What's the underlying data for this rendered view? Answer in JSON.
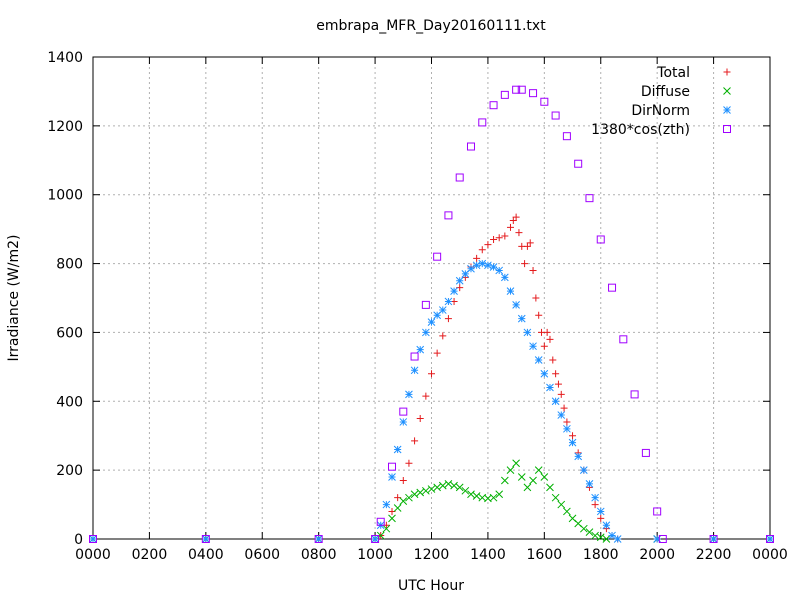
{
  "chart_data": {
    "type": "scatter",
    "title": "embrapa_MFR_Day20160111.txt",
    "xlabel": "UTC Hour",
    "ylabel": "Irradiance (W/m2)",
    "xlim": [
      0,
      24
    ],
    "ylim": [
      0,
      1400
    ],
    "x_ticks": [
      0,
      2,
      4,
      6,
      8,
      10,
      12,
      14,
      16,
      18,
      20,
      22,
      24
    ],
    "x_tick_labels": [
      "0000",
      "0200",
      "0400",
      "0600",
      "0800",
      "1000",
      "1200",
      "1400",
      "1600",
      "1800",
      "2000",
      "2200",
      "0000"
    ],
    "y_ticks": [
      0,
      200,
      400,
      600,
      800,
      1000,
      1200,
      1400
    ],
    "y_tick_labels": [
      "0",
      "200",
      "400",
      "600",
      "800",
      "1000",
      "1200",
      "1400"
    ],
    "grid": true,
    "legend_position": "top-right",
    "series": [
      {
        "name": "Total",
        "marker": "plus",
        "color": "#e41a1c",
        "points": [
          [
            0,
            0
          ],
          [
            4,
            0
          ],
          [
            8,
            0
          ],
          [
            10.0,
            0
          ],
          [
            10.2,
            10
          ],
          [
            10.4,
            40
          ],
          [
            10.6,
            80
          ],
          [
            10.8,
            120
          ],
          [
            11.0,
            170
          ],
          [
            11.2,
            220
          ],
          [
            11.4,
            285
          ],
          [
            11.6,
            350
          ],
          [
            11.8,
            415
          ],
          [
            12.0,
            480
          ],
          [
            12.2,
            540
          ],
          [
            12.4,
            590
          ],
          [
            12.6,
            640
          ],
          [
            12.8,
            690
          ],
          [
            13.0,
            730
          ],
          [
            13.2,
            760
          ],
          [
            13.4,
            790
          ],
          [
            13.6,
            815
          ],
          [
            13.8,
            840
          ],
          [
            14.0,
            855
          ],
          [
            14.2,
            870
          ],
          [
            14.4,
            875
          ],
          [
            14.6,
            880
          ],
          [
            14.8,
            905
          ],
          [
            14.9,
            925
          ],
          [
            15.0,
            935
          ],
          [
            15.1,
            890
          ],
          [
            15.2,
            850
          ],
          [
            15.3,
            800
          ],
          [
            15.4,
            850
          ],
          [
            15.5,
            860
          ],
          [
            15.6,
            780
          ],
          [
            15.7,
            700
          ],
          [
            15.8,
            650
          ],
          [
            15.9,
            600
          ],
          [
            16.0,
            560
          ],
          [
            16.1,
            600
          ],
          [
            16.2,
            580
          ],
          [
            16.3,
            520
          ],
          [
            16.4,
            480
          ],
          [
            16.5,
            450
          ],
          [
            16.6,
            420
          ],
          [
            16.7,
            380
          ],
          [
            16.8,
            340
          ],
          [
            17.0,
            300
          ],
          [
            17.2,
            250
          ],
          [
            17.4,
            200
          ],
          [
            17.6,
            150
          ],
          [
            17.8,
            100
          ],
          [
            18.0,
            60
          ],
          [
            18.2,
            30
          ],
          [
            18.4,
            10
          ],
          [
            18.6,
            0
          ],
          [
            20,
            0
          ],
          [
            22,
            0
          ],
          [
            24,
            0
          ]
        ]
      },
      {
        "name": "Diffuse",
        "marker": "cross",
        "color": "#00b000",
        "points": [
          [
            0,
            0
          ],
          [
            4,
            0
          ],
          [
            8,
            0
          ],
          [
            10.0,
            0
          ],
          [
            10.2,
            10
          ],
          [
            10.4,
            30
          ],
          [
            10.6,
            60
          ],
          [
            10.8,
            90
          ],
          [
            11.0,
            110
          ],
          [
            11.2,
            120
          ],
          [
            11.4,
            130
          ],
          [
            11.6,
            135
          ],
          [
            11.8,
            140
          ],
          [
            12.0,
            145
          ],
          [
            12.2,
            150
          ],
          [
            12.4,
            155
          ],
          [
            12.6,
            160
          ],
          [
            12.8,
            155
          ],
          [
            13.0,
            150
          ],
          [
            13.2,
            140
          ],
          [
            13.4,
            130
          ],
          [
            13.6,
            125
          ],
          [
            13.8,
            120
          ],
          [
            14.0,
            118
          ],
          [
            14.2,
            120
          ],
          [
            14.4,
            130
          ],
          [
            14.6,
            170
          ],
          [
            14.8,
            200
          ],
          [
            15.0,
            220
          ],
          [
            15.2,
            180
          ],
          [
            15.4,
            150
          ],
          [
            15.6,
            170
          ],
          [
            15.8,
            200
          ],
          [
            16.0,
            180
          ],
          [
            16.2,
            150
          ],
          [
            16.4,
            120
          ],
          [
            16.6,
            100
          ],
          [
            16.8,
            80
          ],
          [
            17.0,
            60
          ],
          [
            17.2,
            45
          ],
          [
            17.4,
            30
          ],
          [
            17.6,
            20
          ],
          [
            17.8,
            10
          ],
          [
            18.0,
            5
          ],
          [
            18.2,
            0
          ],
          [
            20,
            0
          ],
          [
            22,
            0
          ],
          [
            24,
            0
          ]
        ]
      },
      {
        "name": "DirNorm",
        "marker": "star",
        "color": "#1e90ff",
        "points": [
          [
            0,
            0
          ],
          [
            4,
            0
          ],
          [
            8,
            0
          ],
          [
            10.0,
            0
          ],
          [
            10.2,
            40
          ],
          [
            10.4,
            100
          ],
          [
            10.6,
            180
          ],
          [
            10.8,
            260
          ],
          [
            11.0,
            340
          ],
          [
            11.2,
            420
          ],
          [
            11.4,
            490
          ],
          [
            11.6,
            550
          ],
          [
            11.8,
            600
          ],
          [
            12.0,
            630
          ],
          [
            12.2,
            650
          ],
          [
            12.4,
            665
          ],
          [
            12.6,
            690
          ],
          [
            12.8,
            720
          ],
          [
            13.0,
            750
          ],
          [
            13.2,
            770
          ],
          [
            13.4,
            785
          ],
          [
            13.6,
            795
          ],
          [
            13.8,
            800
          ],
          [
            14.0,
            795
          ],
          [
            14.2,
            790
          ],
          [
            14.4,
            780
          ],
          [
            14.6,
            760
          ],
          [
            14.8,
            720
          ],
          [
            15.0,
            680
          ],
          [
            15.2,
            640
          ],
          [
            15.4,
            600
          ],
          [
            15.6,
            560
          ],
          [
            15.8,
            520
          ],
          [
            16.0,
            480
          ],
          [
            16.2,
            440
          ],
          [
            16.4,
            400
          ],
          [
            16.6,
            360
          ],
          [
            16.8,
            320
          ],
          [
            17.0,
            280
          ],
          [
            17.2,
            240
          ],
          [
            17.4,
            200
          ],
          [
            17.6,
            160
          ],
          [
            17.8,
            120
          ],
          [
            18.0,
            80
          ],
          [
            18.2,
            40
          ],
          [
            18.4,
            10
          ],
          [
            18.6,
            0
          ],
          [
            20,
            0
          ],
          [
            22,
            0
          ],
          [
            24,
            0
          ]
        ]
      },
      {
        "name": "1380*cos(zth)",
        "marker": "square",
        "color": "#a000ff",
        "points": [
          [
            0,
            0
          ],
          [
            4,
            0
          ],
          [
            8,
            0
          ],
          [
            10.0,
            0
          ],
          [
            10.2,
            50
          ],
          [
            10.6,
            210
          ],
          [
            11.0,
            370
          ],
          [
            11.4,
            530
          ],
          [
            11.8,
            680
          ],
          [
            12.2,
            820
          ],
          [
            12.6,
            940
          ],
          [
            13.0,
            1050
          ],
          [
            13.4,
            1140
          ],
          [
            13.8,
            1210
          ],
          [
            14.2,
            1260
          ],
          [
            14.6,
            1290
          ],
          [
            15.0,
            1305
          ],
          [
            15.2,
            1305
          ],
          [
            15.6,
            1295
          ],
          [
            16.0,
            1270
          ],
          [
            16.4,
            1230
          ],
          [
            16.8,
            1170
          ],
          [
            17.2,
            1090
          ],
          [
            17.6,
            990
          ],
          [
            18.0,
            870
          ],
          [
            18.4,
            730
          ],
          [
            18.8,
            580
          ],
          [
            19.2,
            420
          ],
          [
            19.6,
            250
          ],
          [
            20.0,
            80
          ],
          [
            20.2,
            0
          ],
          [
            22,
            0
          ],
          [
            24,
            0
          ]
        ]
      }
    ]
  }
}
